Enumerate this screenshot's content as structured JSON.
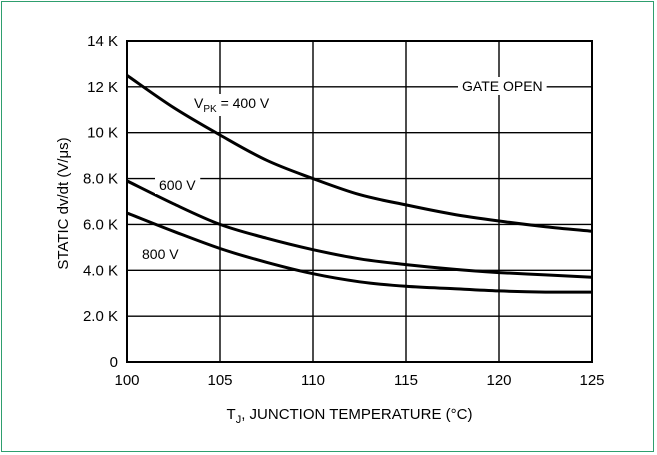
{
  "chart_data": {
    "type": "line",
    "xlabel_main": "T",
    "xlabel_sub": "J",
    "xlabel_rest": ", JUNCTION TEMPERATURE (°C)",
    "ylabel": "STATIC dv/dt (V/μs)",
    "x_ticks": [
      {
        "value": 100,
        "label": "100"
      },
      {
        "value": 105,
        "label": "105"
      },
      {
        "value": 110,
        "label": "110"
      },
      {
        "value": 115,
        "label": "115"
      },
      {
        "value": 120,
        "label": "120"
      },
      {
        "value": 125,
        "label": "125"
      }
    ],
    "y_ticks": [
      {
        "value": 0,
        "label": "0"
      },
      {
        "value": 2000,
        "label": "2.0 K"
      },
      {
        "value": 4000,
        "label": "4.0 K"
      },
      {
        "value": 6000,
        "label": "6.0 K"
      },
      {
        "value": 8000,
        "label": "8.0 K"
      },
      {
        "value": 10000,
        "label": "10 K"
      },
      {
        "value": 12000,
        "label": "12 K"
      },
      {
        "value": 14000,
        "label": "14 K"
      }
    ],
    "xlim": [
      100,
      125
    ],
    "ylim": [
      0,
      14000
    ],
    "grid": true,
    "condition_label": "GATE OPEN",
    "series": [
      {
        "label_main": "V",
        "label_sub": "PK",
        "label_rest": " = 400 V",
        "x": [
          100,
          102.5,
          105,
          107.5,
          110,
          112.5,
          115,
          117.5,
          120,
          122.5,
          125
        ],
        "y": [
          12500,
          11100,
          9900,
          8800,
          8000,
          7300,
          6850,
          6450,
          6150,
          5900,
          5700
        ]
      },
      {
        "label_main": "600 V",
        "x": [
          100,
          102.5,
          105,
          107.5,
          110,
          112.5,
          115,
          117.5,
          120,
          122.5,
          125
        ],
        "y": [
          7900,
          6900,
          6000,
          5400,
          4900,
          4500,
          4250,
          4050,
          3900,
          3800,
          3700
        ]
      },
      {
        "label_main": "800 V",
        "x": [
          100,
          102.5,
          105,
          107.5,
          110,
          112.5,
          115,
          117.5,
          120,
          122.5,
          125
        ],
        "y": [
          6500,
          5700,
          4950,
          4350,
          3850,
          3500,
          3300,
          3200,
          3100,
          3050,
          3050
        ]
      }
    ]
  }
}
